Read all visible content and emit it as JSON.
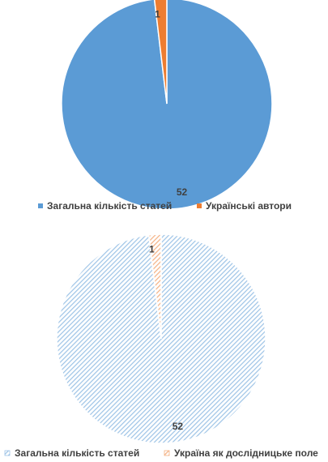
{
  "chart_data": [
    {
      "type": "pie",
      "title": "",
      "categories": [
        "Загальна кількість статей",
        "Українські автори"
      ],
      "values": [
        52,
        1
      ],
      "data_labels": [
        "52",
        "1"
      ],
      "colors": [
        "#5B9BD5",
        "#ED7D31"
      ],
      "fill_style": "solid",
      "legend": {
        "position": "bottom",
        "entries": [
          "Загальна кількість статей",
          "Українські автори"
        ]
      }
    },
    {
      "type": "pie",
      "title": "",
      "categories": [
        "Загальна кількість статей",
        "Україна як дослідницьке поле"
      ],
      "values": [
        52,
        1
      ],
      "data_labels": [
        "52",
        "1"
      ],
      "colors": [
        "#9DC3E6",
        "#F4B183"
      ],
      "fill_style": "hatched",
      "legend": {
        "position": "bottom",
        "entries": [
          "Загальна кількість статей",
          "Україна як дослідницьке поле"
        ]
      }
    }
  ]
}
